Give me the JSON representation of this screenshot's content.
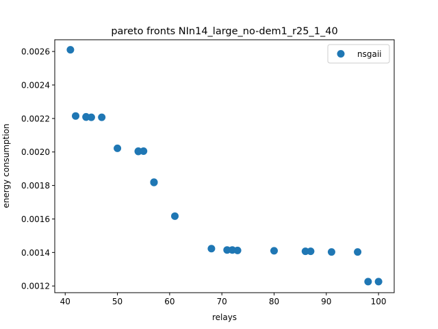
{
  "chart_data": {
    "type": "scatter",
    "title": "pareto fronts NIn14_large_no-dem1_r25_1_40",
    "xlabel": "relays",
    "ylabel": "energy consumption",
    "xlim": [
      38,
      103
    ],
    "ylim": [
      0.00116,
      0.00267
    ],
    "xticks": [
      40,
      50,
      60,
      70,
      80,
      90,
      100
    ],
    "yticks": [
      0.0012,
      0.0014,
      0.0016,
      0.0018,
      0.002,
      0.0022,
      0.0024,
      0.0026
    ],
    "ytick_labels": [
      "0.0012",
      "0.0014",
      "0.0016",
      "0.0018",
      "0.0020",
      "0.0022",
      "0.0024",
      "0.0026"
    ],
    "grid": false,
    "legend": {
      "position": "top-right"
    },
    "series": [
      {
        "name": "nsgaii",
        "color": "#1f77b4",
        "points": [
          [
            41,
            0.00261
          ],
          [
            42,
            0.002215
          ],
          [
            44,
            0.00221
          ],
          [
            44,
            0.002208
          ],
          [
            45,
            0.002207
          ],
          [
            47,
            0.002207
          ],
          [
            50,
            0.002022
          ],
          [
            54,
            0.002005
          ],
          [
            54,
            0.002003
          ],
          [
            55,
            0.002005
          ],
          [
            57,
            0.00182
          ],
          [
            57,
            0.001818
          ],
          [
            61,
            0.001617
          ],
          [
            68,
            0.001423
          ],
          [
            71,
            0.001415
          ],
          [
            72,
            0.001415
          ],
          [
            73,
            0.001412
          ],
          [
            80,
            0.00141
          ],
          [
            86,
            0.001407
          ],
          [
            87,
            0.001407
          ],
          [
            91,
            0.001403
          ],
          [
            96,
            0.001403
          ],
          [
            98,
            0.001226
          ],
          [
            100,
            0.001226
          ]
        ]
      }
    ]
  }
}
